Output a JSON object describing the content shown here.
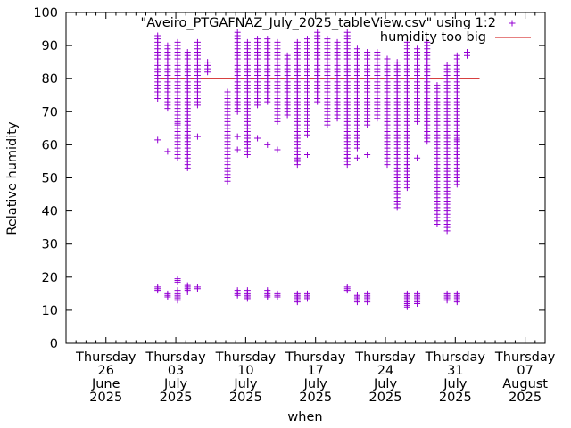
{
  "chart_data": {
    "type": "scatter",
    "title": "",
    "xlabel": "when",
    "ylabel": "Relative humidity",
    "ylim": [
      0,
      100
    ],
    "yticks": [
      0,
      10,
      20,
      30,
      40,
      50,
      60,
      70,
      80,
      90,
      100
    ],
    "xlim": [
      "2025-06-22",
      "2025-08-09"
    ],
    "xticks": [
      {
        "date": "2025-06-26",
        "line1": "Thursday",
        "line2": "26",
        "line3": "June",
        "line4": "2025"
      },
      {
        "date": "2025-07-03",
        "line1": "Thursday",
        "line2": "03",
        "line3": "July",
        "line4": "2025"
      },
      {
        "date": "2025-07-10",
        "line1": "Thursday",
        "line2": "10",
        "line3": "July",
        "line4": "2025"
      },
      {
        "date": "2025-07-17",
        "line1": "Thursday",
        "line2": "17",
        "line3": "July",
        "line4": "2025"
      },
      {
        "date": "2025-07-24",
        "line1": "Thursday",
        "line2": "24",
        "line3": "July",
        "line4": "2025"
      },
      {
        "date": "2025-07-31",
        "line1": "Thursday",
        "line2": "31",
        "line3": "July",
        "line4": "2025"
      },
      {
        "date": "2025-08-07",
        "line1": "Thursday",
        "line2": "07",
        "line3": "August",
        "line4": "2025"
      }
    ],
    "minor_ticks_per_interval": 7,
    "grid": false,
    "legend_position": "top-right",
    "series": [
      {
        "name": "\"Aveiro_PTGAFNAZ_July_2025_tableView.csv\" using 1:2",
        "style": "points",
        "marker": "+",
        "color": "#9400d3",
        "daily_ranges": [
          {
            "date": "2025-07-01",
            "min": 74,
            "max": 93
          },
          {
            "date": "2025-07-02",
            "min": 71,
            "max": 90
          },
          {
            "date": "2025-07-03",
            "min": 56,
            "max": 91
          },
          {
            "date": "2025-07-04",
            "min": 53,
            "max": 88
          },
          {
            "date": "2025-07-05",
            "min": 72,
            "max": 91
          },
          {
            "date": "2025-07-06",
            "min": 82,
            "max": 85
          },
          {
            "date": "2025-07-08",
            "min": 49,
            "max": 76
          },
          {
            "date": "2025-07-09",
            "min": 70,
            "max": 94
          },
          {
            "date": "2025-07-10",
            "min": 57,
            "max": 91
          },
          {
            "date": "2025-07-11",
            "min": 72,
            "max": 92
          },
          {
            "date": "2025-07-12",
            "min": 73,
            "max": 92
          },
          {
            "date": "2025-07-13",
            "min": 67,
            "max": 91
          },
          {
            "date": "2025-07-14",
            "min": 69,
            "max": 87
          },
          {
            "date": "2025-07-15",
            "min": 54,
            "max": 91
          },
          {
            "date": "2025-07-16",
            "min": 63,
            "max": 92
          },
          {
            "date": "2025-07-17",
            "min": 73,
            "max": 94
          },
          {
            "date": "2025-07-18",
            "min": 66,
            "max": 92
          },
          {
            "date": "2025-07-19",
            "min": 68,
            "max": 91
          },
          {
            "date": "2025-07-20",
            "min": 54,
            "max": 94
          },
          {
            "date": "2025-07-21",
            "min": 59,
            "max": 89
          },
          {
            "date": "2025-07-22",
            "min": 66,
            "max": 88
          },
          {
            "date": "2025-07-23",
            "min": 68,
            "max": 88
          },
          {
            "date": "2025-07-24",
            "min": 54,
            "max": 86
          },
          {
            "date": "2025-07-25",
            "min": 41,
            "max": 85
          },
          {
            "date": "2025-07-26",
            "min": 47,
            "max": 91
          },
          {
            "date": "2025-07-27",
            "min": 67,
            "max": 89
          },
          {
            "date": "2025-07-28",
            "min": 61,
            "max": 91
          },
          {
            "date": "2025-07-29",
            "min": 36,
            "max": 78
          },
          {
            "date": "2025-07-30",
            "min": 34,
            "max": 84
          },
          {
            "date": "2025-07-31",
            "min": 48,
            "max": 87
          },
          {
            "date": "2025-08-01",
            "min": 87,
            "max": 88
          }
        ],
        "isolated_points": [
          {
            "date": "2025-07-01",
            "y": 61.5
          },
          {
            "date": "2025-07-02",
            "y": 58
          },
          {
            "date": "2025-07-03",
            "y": 66.5
          },
          {
            "date": "2025-07-04",
            "y": 62
          },
          {
            "date": "2025-07-05",
            "y": 62.5
          },
          {
            "date": "2025-07-09",
            "y": 62.5
          },
          {
            "date": "2025-07-09",
            "y": 58.5
          },
          {
            "date": "2025-07-10",
            "y": 61
          },
          {
            "date": "2025-07-11",
            "y": 62
          },
          {
            "date": "2025-07-12",
            "y": 60
          },
          {
            "date": "2025-07-13",
            "y": 58.5
          },
          {
            "date": "2025-07-15",
            "y": 55.5
          },
          {
            "date": "2025-07-16",
            "y": 57
          },
          {
            "date": "2025-07-20",
            "y": 62
          },
          {
            "date": "2025-07-20",
            "y": 56
          },
          {
            "date": "2025-07-21",
            "y": 56
          },
          {
            "date": "2025-07-22",
            "y": 57
          },
          {
            "date": "2025-07-26",
            "y": 54
          },
          {
            "date": "2025-07-27",
            "y": 56
          },
          {
            "date": "2025-07-31",
            "y": 61.5
          },
          {
            "date": "2025-07-31",
            "y": 57
          }
        ],
        "low_clusters": [
          {
            "date": "2025-07-01",
            "min": 16,
            "max": 17
          },
          {
            "date": "2025-07-02",
            "min": 14,
            "max": 15
          },
          {
            "date": "2025-07-03",
            "min": 13,
            "max": 16
          },
          {
            "date": "2025-07-03",
            "min": 18.5,
            "max": 19.5
          },
          {
            "date": "2025-07-04",
            "min": 15.5,
            "max": 17.5
          },
          {
            "date": "2025-07-05",
            "min": 16.5,
            "max": 17
          },
          {
            "date": "2025-07-09",
            "min": 14.5,
            "max": 16
          },
          {
            "date": "2025-07-10",
            "min": 13.5,
            "max": 16
          },
          {
            "date": "2025-07-12",
            "min": 14,
            "max": 16
          },
          {
            "date": "2025-07-13",
            "min": 14,
            "max": 15
          },
          {
            "date": "2025-07-15",
            "min": 12.5,
            "max": 15
          },
          {
            "date": "2025-07-16",
            "min": 13.5,
            "max": 15
          },
          {
            "date": "2025-07-20",
            "min": 16,
            "max": 17
          },
          {
            "date": "2025-07-21",
            "min": 12.5,
            "max": 14.5
          },
          {
            "date": "2025-07-22",
            "min": 12.5,
            "max": 15
          },
          {
            "date": "2025-07-26",
            "min": 11,
            "max": 15
          },
          {
            "date": "2025-07-27",
            "min": 12,
            "max": 15
          },
          {
            "date": "2025-07-30",
            "min": 13,
            "max": 15
          },
          {
            "date": "2025-07-31",
            "min": 12.5,
            "max": 15
          }
        ]
      },
      {
        "name": "humidity too big",
        "style": "line",
        "color": "#cc0000",
        "y": 80,
        "x_start": "2025-07-01",
        "x_end": "2025-08-01"
      }
    ]
  }
}
